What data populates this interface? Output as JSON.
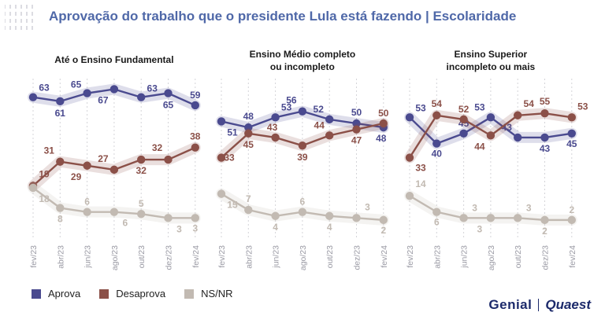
{
  "title": "Aprovação do trabalho que o presidente Lula está fazendo | Escolaridade",
  "colors": {
    "aprova": "#4a4a8f",
    "desaprova": "#8b5048",
    "nsnr": "#c2bab2"
  },
  "legend": [
    "Aprova",
    "Desaprova",
    "NS/NR"
  ],
  "logos": {
    "left": "Genial",
    "right": "Quaest"
  },
  "chart_data": [
    {
      "type": "line",
      "title": "Até o Ensino Fundamental",
      "x": [
        "fev/23",
        "abr/23",
        "jun/23",
        "ago/23",
        "out/23",
        "dez/23",
        "fev/24"
      ],
      "series": [
        {
          "name": "Aprova",
          "values": [
            63,
            61,
            65,
            67,
            63,
            65,
            59
          ]
        },
        {
          "name": "Desaprova",
          "values": [
            19,
            31,
            29,
            27,
            32,
            32,
            38
          ]
        },
        {
          "name": "NS/NR",
          "values": [
            18,
            8,
            6,
            6,
            5,
            3,
            3
          ]
        }
      ]
    },
    {
      "type": "line",
      "title": "Ensino Médio completo ou incompleto",
      "x": [
        "fev/23",
        "abr/23",
        "jun/23",
        "ago/23",
        "out/23",
        "dez/23",
        "fev/24"
      ],
      "series": [
        {
          "name": "Aprova",
          "values": [
            51,
            48,
            53,
            56,
            52,
            50,
            48
          ]
        },
        {
          "name": "Desaprova",
          "values": [
            33,
            45,
            43,
            39,
            44,
            47,
            50
          ]
        },
        {
          "name": "NS/NR",
          "values": [
            15,
            7,
            4,
            6,
            4,
            3,
            2
          ]
        }
      ]
    },
    {
      "type": "line",
      "title": "Ensino Superior incompleto ou mais",
      "x": [
        "fev/23",
        "abr/23",
        "jun/23",
        "ago/23",
        "out/23",
        "dez/23",
        "fev/24"
      ],
      "series": [
        {
          "name": "Aprova",
          "values": [
            53,
            40,
            45,
            53,
            43,
            43,
            45
          ]
        },
        {
          "name": "Desaprova",
          "values": [
            33,
            54,
            52,
            44,
            54,
            55,
            53
          ]
        },
        {
          "name": "NS/NR",
          "values": [
            14,
            6,
            3,
            3,
            3,
            2,
            2
          ]
        }
      ]
    }
  ]
}
